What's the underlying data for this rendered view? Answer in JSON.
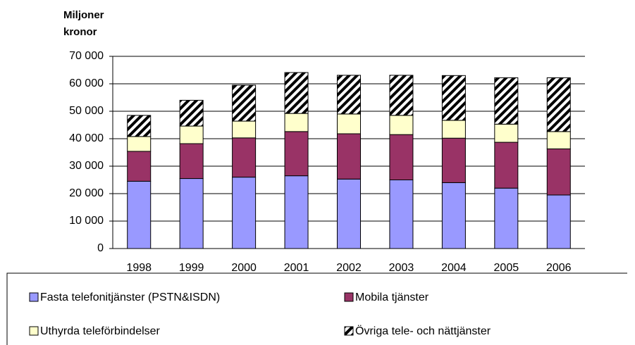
{
  "chart_data": {
    "type": "stacked_bar",
    "y_label": [
      "Miljoner",
      "kronor"
    ],
    "categories": [
      "1998",
      "1999",
      "2000",
      "2001",
      "2002",
      "2003",
      "2004",
      "2005",
      "2006"
    ],
    "series": [
      {
        "name": "Fasta telefonitjänster (PSTN&ISDN)",
        "color": "#9999ff",
        "values": [
          24500,
          25500,
          26000,
          26500,
          25300,
          25000,
          24000,
          22000,
          19500
        ]
      },
      {
        "name": "Mobila tjänster",
        "color": "#993366",
        "values": [
          10900,
          12700,
          14300,
          16100,
          16500,
          16500,
          16200,
          16700,
          16800
        ]
      },
      {
        "name": "Uthyrda teleförbindelser",
        "color": "#ffffcc",
        "values": [
          5400,
          6400,
          6100,
          6600,
          7200,
          7000,
          6500,
          6600,
          6300
        ]
      },
      {
        "name": "Övriga tele- och nättjänster",
        "color": "#000000",
        "hatch": true,
        "values": [
          7700,
          9400,
          13100,
          14900,
          14100,
          14600,
          16300,
          16900,
          19600
        ]
      }
    ],
    "ylim": [
      0,
      70000
    ],
    "yticks": [
      0,
      {
        "value": 10000,
        "label": "10 000"
      },
      {
        "value": 20000,
        "label": "20 000"
      },
      {
        "value": 30000,
        "label": "30 000"
      },
      {
        "value": 40000,
        "label": "40 000"
      },
      {
        "value": 50000,
        "label": "50 000"
      },
      {
        "value": 60000,
        "label": "60 000"
      },
      {
        "value": 70000,
        "label": "70 000"
      }
    ],
    "grid": true
  }
}
